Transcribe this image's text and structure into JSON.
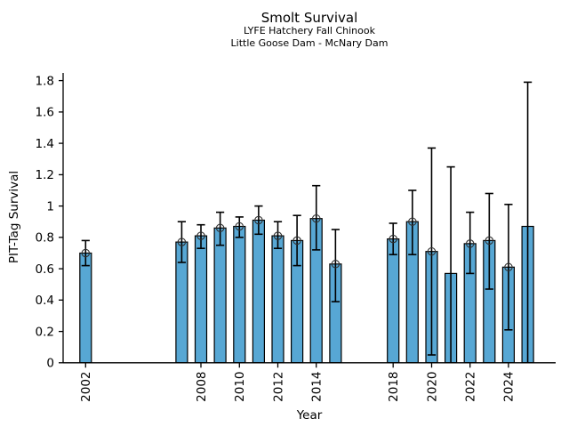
{
  "chart_data": {
    "type": "bar",
    "title": "Smolt Survival",
    "subtitles": [
      "LYFE Hatchery Fall Chinook",
      "Little Goose Dam - McNary Dam"
    ],
    "xlabel": "Year",
    "ylabel": "PIT-Tag Survival",
    "ylim": [
      0,
      1.85
    ],
    "xlim": [
      2000.8,
      2026.5
    ],
    "grid": false,
    "legend": null,
    "yticks": [
      0,
      0.2,
      0.4,
      0.6,
      0.8,
      1,
      1.2,
      1.4,
      1.6,
      1.8
    ],
    "ytick_labels": [
      "0",
      "0.2",
      "0.4",
      "0.6",
      "0.8",
      "1",
      "1.2",
      "1.4",
      "1.6",
      "1.8"
    ],
    "xticks": [
      2002,
      2008,
      2010,
      2012,
      2014,
      2018,
      2020,
      2022,
      2024
    ],
    "bar_color": "#57A7D4",
    "bar_edge_color": "#000000",
    "error_color": "#000000",
    "marker_color": "#303030",
    "bars": [
      {
        "year": 2002,
        "value": 0.7,
        "err_lo": 0.62,
        "err_hi": 0.78,
        "marker": true,
        "err_lo_clipped": false
      },
      {
        "year": 2007,
        "value": 0.77,
        "err_lo": 0.64,
        "err_hi": 0.9,
        "marker": true,
        "err_lo_clipped": false
      },
      {
        "year": 2008,
        "value": 0.81,
        "err_lo": 0.73,
        "err_hi": 0.88,
        "marker": true,
        "err_lo_clipped": false
      },
      {
        "year": 2009,
        "value": 0.86,
        "err_lo": 0.75,
        "err_hi": 0.96,
        "marker": true,
        "err_lo_clipped": false
      },
      {
        "year": 2010,
        "value": 0.87,
        "err_lo": 0.8,
        "err_hi": 0.93,
        "marker": true,
        "err_lo_clipped": false
      },
      {
        "year": 2011,
        "value": 0.91,
        "err_lo": 0.82,
        "err_hi": 1.0,
        "marker": true,
        "err_lo_clipped": false
      },
      {
        "year": 2012,
        "value": 0.81,
        "err_lo": 0.73,
        "err_hi": 0.9,
        "marker": true,
        "err_lo_clipped": false
      },
      {
        "year": 2013,
        "value": 0.78,
        "err_lo": 0.62,
        "err_hi": 0.94,
        "marker": true,
        "err_lo_clipped": false
      },
      {
        "year": 2014,
        "value": 0.92,
        "err_lo": 0.72,
        "err_hi": 1.13,
        "marker": true,
        "err_lo_clipped": false
      },
      {
        "year": 2015,
        "value": 0.63,
        "err_lo": 0.39,
        "err_hi": 0.85,
        "marker": true,
        "err_lo_clipped": false
      },
      {
        "year": 2018,
        "value": 0.79,
        "err_lo": 0.69,
        "err_hi": 0.89,
        "marker": true,
        "err_lo_clipped": false
      },
      {
        "year": 2019,
        "value": 0.9,
        "err_lo": 0.69,
        "err_hi": 1.1,
        "marker": true,
        "err_lo_clipped": false
      },
      {
        "year": 2020,
        "value": 0.71,
        "err_lo": 0.05,
        "err_hi": 1.37,
        "marker": true,
        "err_lo_clipped": false
      },
      {
        "year": 2021,
        "value": 0.57,
        "err_lo": 0.0,
        "err_hi": 1.25,
        "marker": false,
        "err_lo_clipped": true
      },
      {
        "year": 2022,
        "value": 0.76,
        "err_lo": 0.57,
        "err_hi": 0.96,
        "marker": true,
        "err_lo_clipped": false
      },
      {
        "year": 2023,
        "value": 0.78,
        "err_lo": 0.47,
        "err_hi": 1.08,
        "marker": true,
        "err_lo_clipped": false
      },
      {
        "year": 2024,
        "value": 0.61,
        "err_lo": 0.21,
        "err_hi": 1.01,
        "marker": true,
        "err_lo_clipped": false
      },
      {
        "year": 2025,
        "value": 0.87,
        "err_lo": 0.0,
        "err_hi": 1.79,
        "marker": false,
        "err_lo_clipped": true
      }
    ]
  }
}
